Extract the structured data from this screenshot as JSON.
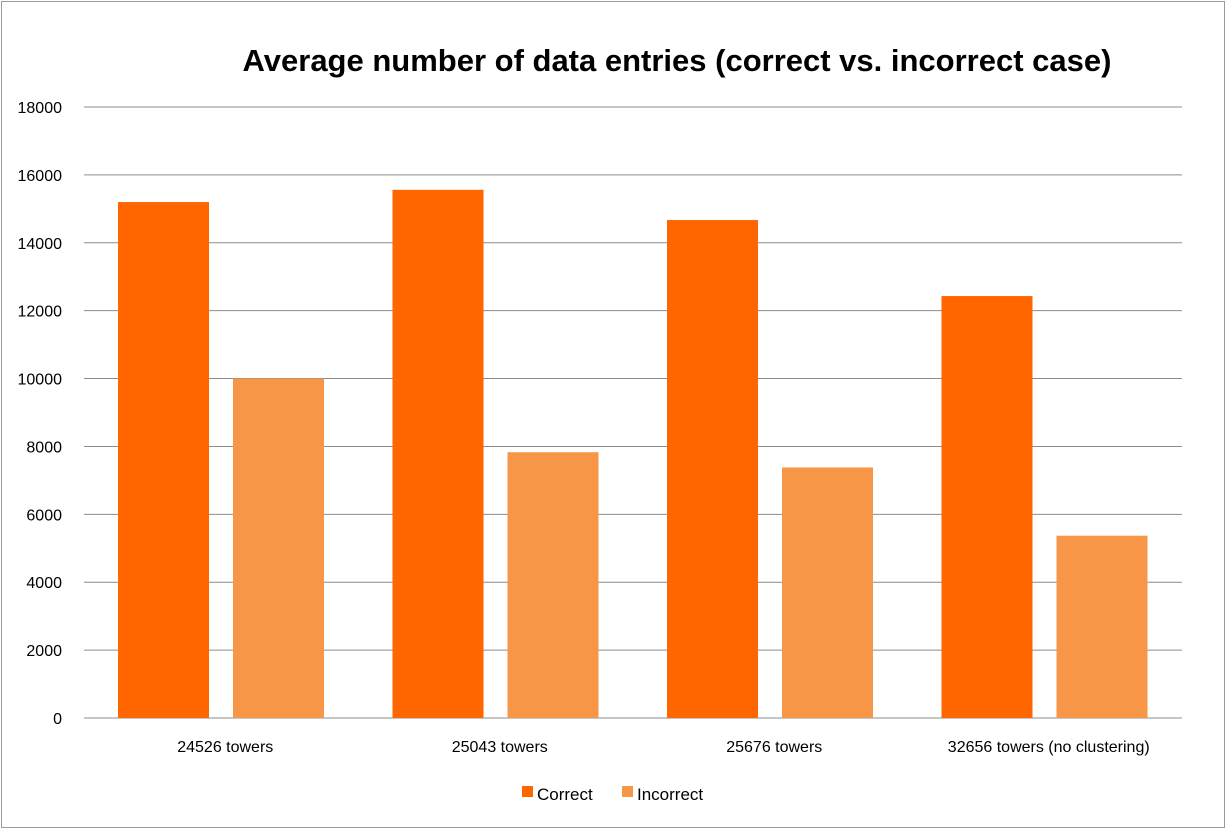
{
  "chart_data": {
    "type": "bar",
    "title": "Average number of data entries (correct vs. incorrect case)",
    "xlabel": "",
    "ylabel": "",
    "categories": [
      "24526 towers",
      "25043 towers",
      "25676 towers",
      "32656 towers (no clustering)"
    ],
    "series": [
      {
        "name": "Correct",
        "color": "#ff6600",
        "values": [
          15200,
          15560,
          14670,
          12430
        ]
      },
      {
        "name": "Incorrect",
        "color": "#f79646",
        "values": [
          10000,
          7830,
          7380,
          5370
        ]
      }
    ],
    "ylim": [
      0,
      18000
    ],
    "yticks": [
      0,
      2000,
      4000,
      6000,
      8000,
      10000,
      12000,
      14000,
      16000,
      18000
    ],
    "grid": true,
    "legend_position": "bottom"
  }
}
